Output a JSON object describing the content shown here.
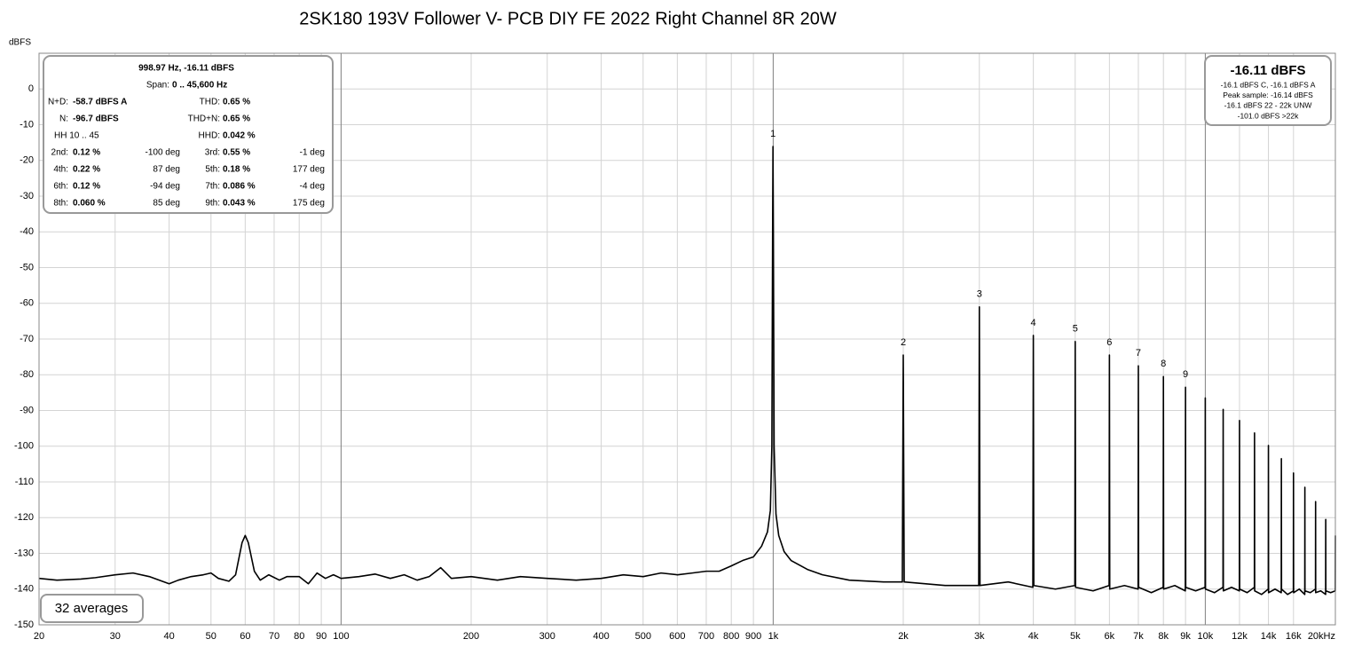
{
  "chart_data": {
    "type": "line",
    "title": "2SK180 193V Follower V- PCB DIY FE 2022 Right Channel 8R 20W",
    "y_label": "dBFS",
    "xscale": "log",
    "grid": true,
    "xlim": [
      20,
      20000
    ],
    "ylim": [
      -150,
      10
    ],
    "xticks": [
      20,
      30,
      40,
      50,
      60,
      70,
      80,
      90,
      100,
      200,
      300,
      400,
      500,
      600,
      700,
      800,
      900,
      {
        "value": 1000,
        "label": "1k"
      },
      {
        "value": 2000,
        "label": "2k"
      },
      {
        "value": 3000,
        "label": "3k"
      },
      {
        "value": 4000,
        "label": "4k"
      },
      {
        "value": 5000,
        "label": "5k"
      },
      {
        "value": 6000,
        "label": "6k"
      },
      {
        "value": 7000,
        "label": "7k"
      },
      {
        "value": 8000,
        "label": "8k"
      },
      {
        "value": 9000,
        "label": "9k"
      },
      {
        "value": 10000,
        "label": "10k"
      },
      {
        "value": 12000,
        "label": "12k"
      },
      {
        "value": 14000,
        "label": "14k"
      },
      {
        "value": 16000,
        "label": "16k"
      },
      {
        "value": 20000,
        "label": "20kHz"
      }
    ],
    "yticks": [
      0,
      -10,
      -20,
      -30,
      -40,
      -50,
      -60,
      -70,
      -80,
      -90,
      -100,
      -110,
      -120,
      -130,
      -140,
      -150
    ],
    "x": [
      20,
      22,
      25,
      27,
      30,
      33,
      36,
      40,
      42,
      45,
      48,
      50,
      52,
      55,
      57,
      59,
      60,
      61,
      63,
      65,
      68,
      72,
      75,
      80,
      84,
      88,
      92,
      96,
      100,
      110,
      120,
      130,
      140,
      150,
      160,
      170,
      180,
      200,
      230,
      260,
      300,
      350,
      400,
      450,
      500,
      550,
      600,
      650,
      700,
      750,
      800,
      850,
      900,
      940,
      970,
      985,
      993,
      997,
      998.97,
      1001,
      1005,
      1015,
      1030,
      1060,
      1100,
      1200,
      1300,
      1500,
      1800,
      1990,
      2000,
      2010,
      2500,
      2990,
      3000,
      3010,
      3500,
      3990,
      4000,
      4010,
      4500,
      4990,
      5000,
      5010,
      5500,
      5990,
      6000,
      6010,
      6500,
      6990,
      7000,
      7010,
      7500,
      7990,
      8000,
      8010,
      8500,
      8990,
      9000,
      9010,
      9500,
      9990,
      10000,
      10010,
      10500,
      10990,
      11000,
      11010,
      11500,
      11990,
      12000,
      12010,
      12500,
      12990,
      13000,
      13010,
      13500,
      13990,
      14000,
      14010,
      14500,
      14990,
      15000,
      15010,
      15500,
      15990,
      16000,
      16010,
      16500,
      16990,
      17000,
      17010,
      17500,
      17990,
      18000,
      18010,
      18500,
      18990,
      19000,
      19010,
      19500,
      19990,
      20000
    ],
    "series": [
      {
        "name": "Right",
        "color": "#000000",
        "values": [
          -137,
          -137.5,
          -137.2,
          -136.8,
          -136,
          -135.5,
          -136.5,
          -138.5,
          -137.5,
          -136.5,
          -136,
          -135.5,
          -137,
          -137.8,
          -136,
          -127,
          -125,
          -127,
          -135,
          -137.5,
          -136,
          -137.5,
          -136.5,
          -136.5,
          -138.5,
          -135.5,
          -137,
          -136,
          -137,
          -136.5,
          -135.8,
          -137,
          -136,
          -137.5,
          -136.5,
          -134,
          -137,
          -136.5,
          -137.5,
          -136.5,
          -137,
          -137.5,
          -137,
          -136,
          -136.5,
          -135.5,
          -136,
          -135.5,
          -135,
          -135,
          -133.5,
          -132,
          -131,
          -128,
          -124,
          -118,
          -100,
          -40,
          -16.11,
          -40,
          -100,
          -119,
          -125,
          -129.5,
          -132,
          -134.5,
          -136,
          -137.5,
          -138,
          -138,
          -74.5,
          -138,
          -139,
          -139,
          -61,
          -139,
          -138,
          -139.5,
          -69,
          -139,
          -140,
          -139,
          -70.7,
          -139.5,
          -140.5,
          -139,
          -74.5,
          -140,
          -139,
          -140,
          -77.5,
          -139.5,
          -141,
          -139.5,
          -80.5,
          -140,
          -139,
          -140.5,
          -83.5,
          -139.5,
          -140.5,
          -139.5,
          -86.5,
          -140,
          -141,
          -139.5,
          -89.7,
          -140.5,
          -139.5,
          -140.5,
          -92.8,
          -140,
          -141,
          -139.5,
          -96.3,
          -140.5,
          -141.5,
          -140,
          -99.8,
          -141,
          -140,
          -141,
          -103.5,
          -140,
          -141.5,
          -140.5,
          -107.5,
          -141,
          -140,
          -141.5,
          -111.5,
          -140.5,
          -141,
          -140,
          -115.5,
          -141,
          -140.5,
          -141.5,
          -120.5,
          -140.5,
          -141,
          -140.5,
          -125
        ]
      }
    ],
    "annotations": [
      {
        "text": "1",
        "x": 998.97,
        "y": -16.11
      },
      {
        "text": "2",
        "x": 2000,
        "y": -74.5
      },
      {
        "text": "3",
        "x": 3000,
        "y": -61
      },
      {
        "text": "4",
        "x": 4000,
        "y": -69
      },
      {
        "text": "5",
        "x": 5000,
        "y": -70.7
      },
      {
        "text": "6",
        "x": 6000,
        "y": -74.5
      },
      {
        "text": "7",
        "x": 7000,
        "y": -77.5
      },
      {
        "text": "8",
        "x": 8000,
        "y": -80.5
      },
      {
        "text": "9",
        "x": 9000,
        "y": -83.5
      }
    ],
    "info_box": {
      "header": "998.97 Hz, -16.11 dBFS",
      "span_label": "Span:",
      "span": "0 .. 45,600 Hz",
      "rows": [
        {
          "l1": "N+D:",
          "v1": "-58.7 dBFS A",
          "l2": "THD:",
          "v2": "0.65 %"
        },
        {
          "l1": "N:",
          "v1": "-96.7 dBFS",
          "l2": "THD+N:",
          "v2": "0.65 %"
        },
        {
          "l1": "HH 10 .. 45",
          "l2": "HHD:",
          "v2": "0.042 %"
        },
        {
          "l1": "2nd:",
          "v1": "0.12 %",
          "p1": "-100 deg",
          "l2": "3rd:",
          "v2": "0.55 %",
          "p2": "-1 deg"
        },
        {
          "l1": "4th:",
          "v1": "0.22 %",
          "p1": "87 deg",
          "l2": "5th:",
          "v2": "0.18 %",
          "p2": "177 deg"
        },
        {
          "l1": "6th:",
          "v1": "0.12 %",
          "p1": "-94 deg",
          "l2": "7th:",
          "v2": "0.086 %",
          "p2": "-4 deg"
        },
        {
          "l1": "8th:",
          "v1": "0.060 %",
          "p1": "85 deg",
          "l2": "9th:",
          "v2": "0.043 %",
          "p2": "175 deg"
        }
      ]
    },
    "level_box": {
      "level": "-16.11 dBFS",
      "lines": [
        "-16.1 dBFS C, -16.1 dBFS A",
        "Peak sample: -16.14 dBFS",
        "-16.1 dBFS 22 - 22k UNW",
        "-101.0 dBFS >22k"
      ]
    },
    "averages": "32 averages"
  }
}
